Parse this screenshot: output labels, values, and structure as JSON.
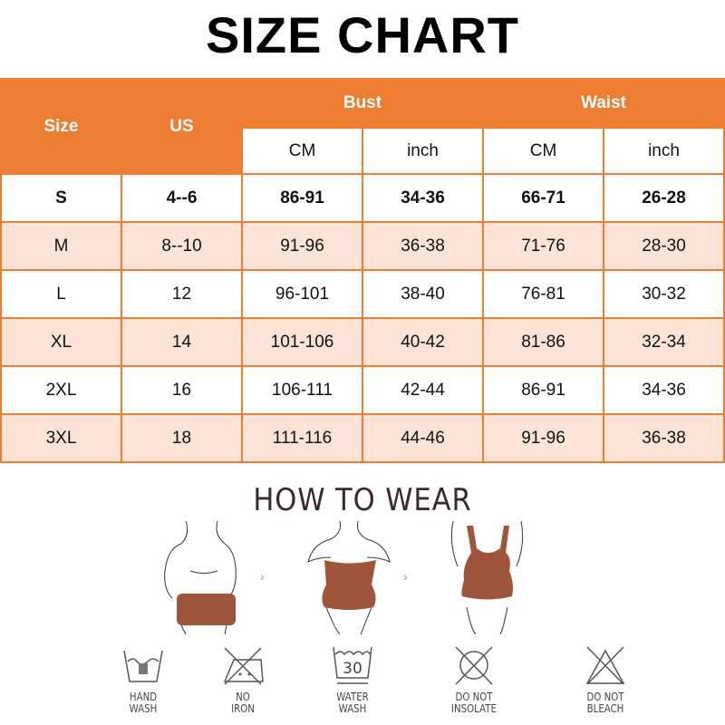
{
  "title": "SIZE CHART",
  "colors": {
    "header": "#ED7D31",
    "alt_row": "#FBE4D5"
  },
  "table": {
    "headers": {
      "size": "Size",
      "us": "US",
      "bust": "Bust",
      "waist": "Waist",
      "cm": "CM",
      "inch": "inch"
    },
    "rows": [
      [
        "S",
        "4--6",
        "86-91",
        "34-36",
        "66-71",
        "26-28"
      ],
      [
        "M",
        "8--10",
        "91-96",
        "36-38",
        "71-76",
        "28-30"
      ],
      [
        "L",
        "12",
        "96-101",
        "38-40",
        "76-81",
        "30-32"
      ],
      [
        "XL",
        "14",
        "101-106",
        "40-42",
        "81-86",
        "32-34"
      ],
      [
        "2XL",
        "16",
        "106-111",
        "42-44",
        "86-91",
        "34-36"
      ],
      [
        "3XL",
        "18",
        "111-116",
        "44-46",
        "91-96",
        "36-38"
      ]
    ]
  },
  "how_to_wear": {
    "title": "HOW TO WEAR",
    "steps": [
      "step-1-pull-up",
      "step-2-adjust-waist",
      "step-3-wear-straps"
    ],
    "arrow": "›"
  },
  "care": [
    {
      "icon": "hand-wash-icon",
      "label1": "HAND",
      "label2": "WASH"
    },
    {
      "icon": "no-iron-icon",
      "label1": "NO",
      "label2": "IRON"
    },
    {
      "icon": "water-wash-icon",
      "label1": "WATER",
      "label2": "WASH",
      "temp": "30"
    },
    {
      "icon": "do-not-tumble-icon",
      "label1": "DO NOT",
      "label2": "INSOLATE"
    },
    {
      "icon": "do-not-bleach-icon",
      "label1": "DO NOT",
      "label2": "BLEACH"
    }
  ]
}
